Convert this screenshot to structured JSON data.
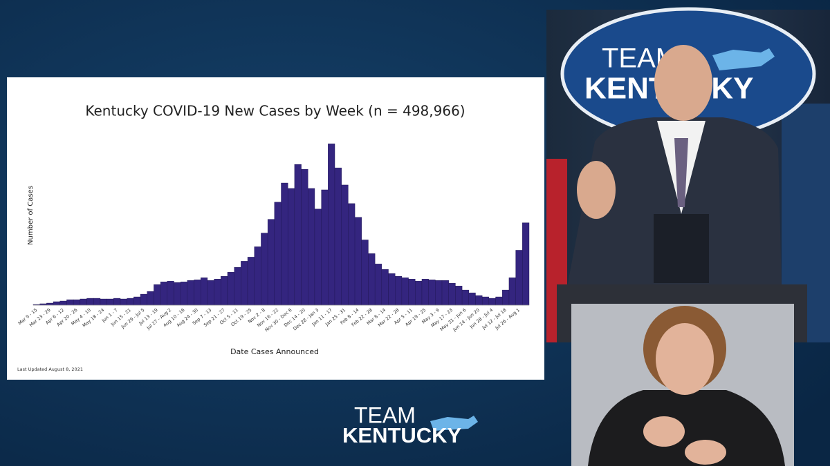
{
  "chart_data": {
    "type": "bar",
    "title": "Kentucky COVID-19 New Cases by Week (n = 498,966)",
    "y_label": "Number of Cases",
    "x_label": "Date Cases Announced",
    "footnote": "Last Updated August 8, 2021",
    "color": "#34257f",
    "ylim": [
      0,
      27500
    ],
    "categories": [
      "Mar 9 - 15",
      null,
      "Mar 23 - 29",
      null,
      "Apr 6 - 12",
      null,
      "Apr 20 - 26",
      null,
      "May 4 - 10",
      null,
      "May 18 - 24",
      null,
      "Jun 1 - 7",
      null,
      "Jun 15 - 21",
      null,
      "Jun 29 - Jul 5",
      null,
      "Jul 13 - 19",
      null,
      "Jul 27 - Aug 2",
      null,
      "Aug 10 - 16",
      null,
      "Aug 24 - 30",
      null,
      "Sep 7 - 13",
      null,
      "Sep 21 - 27",
      null,
      "Oct 5 - 11",
      null,
      "Oct 19 - 25",
      null,
      "Nov 2 - 8",
      null,
      "Nov 16 - 22",
      null,
      "Nov 30 - Dec 6",
      null,
      "Dec 14 - 20",
      null,
      "Dec 28 - Jan 3",
      null,
      "Jan 11 - 17",
      null,
      "Jan 25 - 31",
      null,
      "Feb 8 - 14",
      null,
      "Feb 22 - 28",
      null,
      "Mar 8 - 14",
      null,
      "Mar 22 - 28",
      null,
      "Apr 5 - 11",
      null,
      "Apr 19 - 25",
      null,
      "May 3 - 9",
      null,
      "May 17 - 23",
      null,
      "May 31 - Jun 6",
      null,
      "Jun 14 - Jun 20",
      null,
      "Jun 28 - Jul 4",
      null,
      "Jul 12 - Jul 18",
      null,
      "Jul 26 - Aug 1",
      null
    ],
    "values": [
      110,
      230,
      340,
      570,
      680,
      900,
      900,
      1020,
      1130,
      1130,
      1020,
      1020,
      1130,
      1020,
      1130,
      1360,
      1810,
      2260,
      3390,
      3840,
      3960,
      3730,
      3840,
      4070,
      4180,
      4520,
      4070,
      4290,
      4750,
      5420,
      6220,
      7230,
      7910,
      9610,
      11870,
      14130,
      16950,
      20110,
      19210,
      23170,
      22370,
      19210,
      15820,
      18980,
      26560,
      22600,
      19780,
      16720,
      14460,
      10740,
      8480,
      6780,
      5880,
      5200,
      4750,
      4520,
      4290,
      3960,
      4290,
      4180,
      4070,
      4070,
      3620,
      3160,
      2490,
      2030,
      1580,
      1360,
      1130,
      1360,
      2490,
      4520,
      9040,
      13560
    ]
  },
  "logos": {
    "backdrop_top": "TEAM",
    "backdrop_bottom": "KENTUCKY",
    "footer_top": "TEAM",
    "footer_bottom": "KENTUCKY"
  }
}
